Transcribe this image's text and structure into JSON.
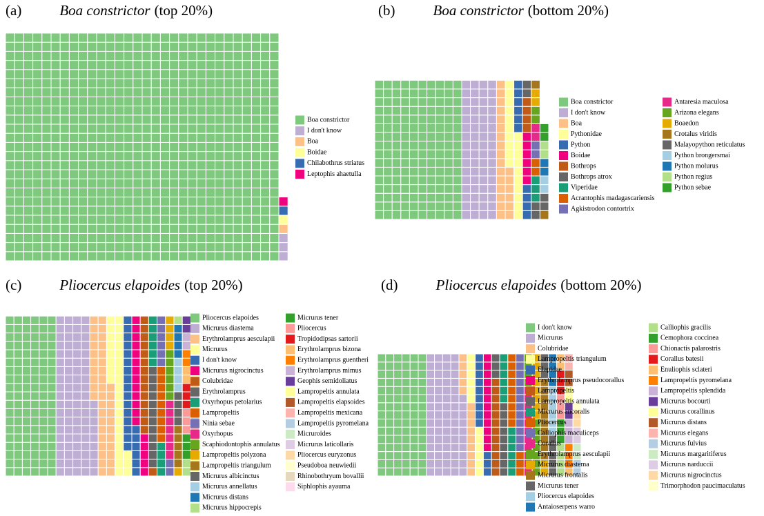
{
  "chart_data": [
    {
      "type": "waffle",
      "panel": "(a)",
      "species": "Boa constrictor",
      "qualifier": "(top 20%)",
      "categories": [
        "Boa constrictor",
        "I don't know",
        "Boa",
        "Boidae",
        "Chilabothrus striatus",
        "Leptophis ahaetulla"
      ],
      "values": [
        750,
        3,
        1,
        1,
        1,
        1
      ],
      "colors": [
        "#7fc97f",
        "#beaed4",
        "#fdc086",
        "#ffff99",
        "#386cb0",
        "#f0027f"
      ]
    },
    {
      "type": "waffle",
      "panel": "(b)",
      "species": "Boa constrictor",
      "qualifier": "(bottom 20%)",
      "categories": [
        "Boa constrictor",
        "I don't know",
        "Boa",
        "Pythonidae",
        "Python",
        "Boidae",
        "Bothrops",
        "Bothrops atrox",
        "Viperidae",
        "Acrantophis madagascariensis",
        "Agkistrodon contortrix",
        "Antaresia maculosa",
        "Arizona elegans",
        "Boaedon",
        "Crotalus viridis",
        "Malayopython reticulatus",
        "Python brongersmai",
        "Python molurus",
        "Python regius",
        "Python sebae"
      ],
      "values": [
        160,
        64,
        22,
        20,
        10,
        6,
        4,
        4,
        3,
        2,
        2,
        2,
        2,
        2,
        2,
        2,
        2,
        2,
        2,
        2
      ],
      "colors": [
        "#7fc97f",
        "#beaed4",
        "#fdc086",
        "#ffff99",
        "#386cb0",
        "#f0027f",
        "#bf5b17",
        "#666666",
        "#1b9e77",
        "#d95f02",
        "#7570b3",
        "#e7298a",
        "#66a61e",
        "#e6ab02",
        "#a6761d",
        "#666666",
        "#a6cee3",
        "#1f78b4",
        "#b2df8a",
        "#33a02c"
      ]
    },
    {
      "type": "waffle",
      "panel": "(c)",
      "species": "Pliocercus elapoides",
      "qualifier": "(top 20%)",
      "categories": [
        "Pliocercus elapoides",
        "Micrurus diastema",
        "Erythrolamprus aesculapii",
        "Micrurus",
        "I don't know",
        "Micrurus nigrocinctus",
        "Colubridae",
        "Erythrolamprus",
        "Oxyrhopus petolarius",
        "Lampropeltis",
        "Ninia sebae",
        "Oxyrhopus",
        "Scaphiodontophis annulatus",
        "Lampropeltis polyzona",
        "Lampropeltis triangulum",
        "Micrurus albicinctus",
        "Micrurus annellatus",
        "Micrurus distans",
        "Micrurus hippocrepis",
        "Micrurus tener",
        "Pliocercus",
        "Tropidodipsas sartorii",
        "Erythrolamprus bizona",
        "Erythrolamprus guentheri",
        "Erythrolamprus mimus",
        "Geophis semidoliatus",
        "Lampropeltis annulata",
        "Lampropeltis elapsoides",
        "Lampropeltis mexicana",
        "Lampropeltis pyromelana",
        "Micruroides",
        "Micrurus laticollaris",
        "Pliocercus euryzonus",
        "Pseudoboa neuwiedii",
        "Rhinobothryum bovallii",
        "Siphlophis ayauma"
      ],
      "values": [
        114,
        85,
        40,
        30,
        22,
        18,
        15,
        12,
        10,
        9,
        8,
        7,
        6,
        5,
        5,
        4,
        4,
        4,
        3,
        3,
        3,
        3,
        2,
        2,
        2,
        2,
        2,
        2,
        2,
        2,
        1,
        1,
        1,
        1,
        1,
        1
      ],
      "colors": [
        "#7fc97f",
        "#beaed4",
        "#fdc086",
        "#ffff99",
        "#386cb0",
        "#f0027f",
        "#bf5b17",
        "#666666",
        "#1b9e77",
        "#d95f02",
        "#7570b3",
        "#e7298a",
        "#66a61e",
        "#e6ab02",
        "#a6761d",
        "#666666",
        "#a6cee3",
        "#1f78b4",
        "#b2df8a",
        "#33a02c",
        "#fb9a99",
        "#e31a1c",
        "#fdbf6f",
        "#ff7f00",
        "#cab2d6",
        "#6a3d9a",
        "#ffff99",
        "#b15928",
        "#fbb4ae",
        "#b3cde3",
        "#ccebc5",
        "#decbe4",
        "#fed9a6",
        "#ffffcc",
        "#e5d8bd",
        "#fddaec"
      ]
    },
    {
      "type": "waffle",
      "panel": "(d)",
      "species": "Pliocercus elapoides",
      "qualifier": "(bottom 20%)",
      "categories": [
        "I don't know",
        "Micrurus",
        "Colubridae",
        "Lampropeltis triangulum",
        "Elapidae",
        "Erythrolamprus pseudocorallus",
        "Lampropeltis",
        "Lampropeltis annulata",
        "Micrurus ancoralis",
        "Pliocercus",
        "Calliophis maculiceps",
        "Corallus",
        "Erythrolamprus aesculapii",
        "Micrurus diastema",
        "Micrurus frontalis",
        "Micrurus tener",
        "Pliocercus elapoides",
        "Antaioserpens warro",
        "Calliophis gracilis",
        "Cemophora coccinea",
        "Chionactis palarostris",
        "Corallus batesii",
        "Enuliophis sclateri",
        "Lampropeltis pyromelana",
        "Lampropeltis splendida",
        "Micrurus bocourti",
        "Micrurus corallinus",
        "Micrurus distans",
        "Micrurus elegans",
        "Micrurus fulvius",
        "Micrurus margaritiferus",
        "Micrurus narduccii",
        "Micrurus nigrocinctus",
        "Trimorphodon paucimaculatus"
      ],
      "values": [
        90,
        70,
        14,
        12,
        12,
        12,
        12,
        12,
        12,
        12,
        12,
        11,
        11,
        10,
        10,
        8,
        6,
        4,
        4,
        3,
        3,
        3,
        3,
        3,
        3,
        2,
        2,
        2,
        2,
        2,
        2,
        2,
        2,
        1
      ],
      "colors": [
        "#7fc97f",
        "#beaed4",
        "#fdc086",
        "#ffff99",
        "#386cb0",
        "#f0027f",
        "#bf5b17",
        "#666666",
        "#1b9e77",
        "#d95f02",
        "#7570b3",
        "#e7298a",
        "#66a61e",
        "#e6ab02",
        "#a6761d",
        "#666666",
        "#a6cee3",
        "#1f78b4",
        "#b2df8a",
        "#33a02c",
        "#fb9a99",
        "#e31a1c",
        "#fdbf6f",
        "#ff7f00",
        "#cab2d6",
        "#6a3d9a",
        "#ffff99",
        "#b15928",
        "#fbb4ae",
        "#b3cde3",
        "#ccebc5",
        "#decbe4",
        "#fed9a6",
        "#ffffcc"
      ]
    }
  ]
}
